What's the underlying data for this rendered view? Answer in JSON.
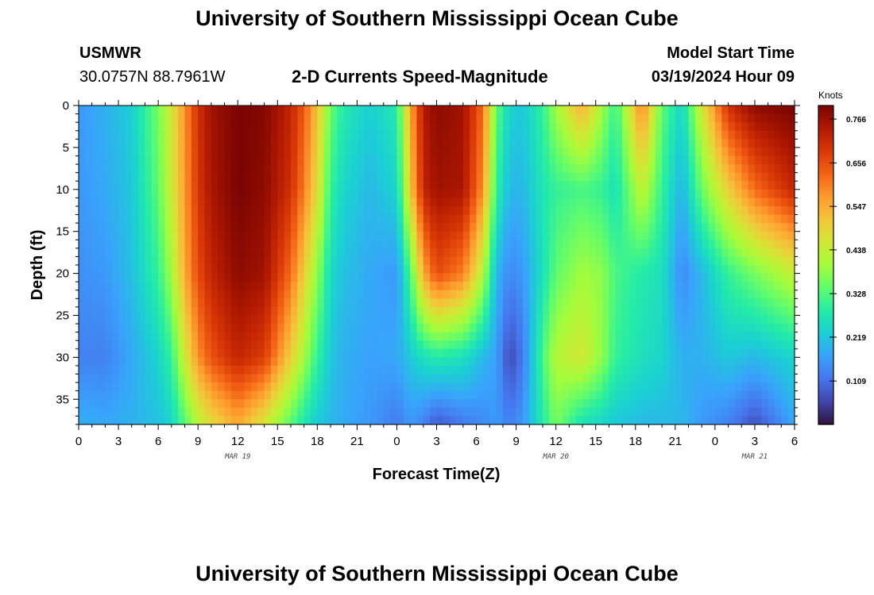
{
  "page": {
    "title": "University of Southern Mississippi Ocean Cube",
    "station": "USMWR",
    "coords": "30.0757N  88.7961W",
    "subtitle": "2-D Currents Speed-Magnitude",
    "model_label": "Model Start Time",
    "model_time": "03/19/2024 Hour 09",
    "bottom_title": "University of Southern Mississippi Ocean Cube"
  },
  "colors": {
    "scale": [
      "#30123b",
      "#4145ab",
      "#4675ed",
      "#39a2fc",
      "#1bcfd4",
      "#24eca6",
      "#61fc6c",
      "#a4fc3b",
      "#d1e834",
      "#f3c63a",
      "#fe9b2d",
      "#f36315",
      "#d93806",
      "#b11901",
      "#7a0402"
    ]
  },
  "chart_data": {
    "type": "heatmap",
    "title": "2-D Currents Speed-Magnitude",
    "xlabel": "Forecast Time(Z)",
    "ylabel": "Depth (ft)",
    "x_ticks": [
      "0",
      "3",
      "6",
      "9",
      "12",
      "15",
      "18",
      "21",
      "0",
      "3",
      "6",
      "9",
      "12",
      "15",
      "18",
      "21",
      "0",
      "3",
      "6"
    ],
    "x_range_hours": [
      0,
      54
    ],
    "y_ticks": [
      0,
      5,
      10,
      15,
      20,
      25,
      30,
      35
    ],
    "ylim": [
      0,
      38
    ],
    "date_labels": [
      {
        "label": "MAR 19",
        "hour": 12
      },
      {
        "label": "MAR 20",
        "hour": 36
      },
      {
        "label": "MAR 21",
        "hour": 51
      }
    ],
    "colorbar": {
      "unit": "Knots",
      "labels": [
        "0.766",
        "0.656",
        "0.547",
        "0.438",
        "0.328",
        "0.219",
        "0.109"
      ],
      "min": 0.0,
      "max": 0.8
    },
    "profile_depths_ft": [
      0,
      10,
      20,
      30,
      38
    ],
    "profiles": [
      {
        "hour": 0,
        "speeds": [
          0.16,
          0.16,
          0.15,
          0.13,
          0.19
        ]
      },
      {
        "hour": 2,
        "speeds": [
          0.19,
          0.18,
          0.16,
          0.13,
          0.18
        ]
      },
      {
        "hour": 4,
        "speeds": [
          0.23,
          0.22,
          0.21,
          0.18,
          0.19
        ]
      },
      {
        "hour": 6,
        "speeds": [
          0.36,
          0.34,
          0.3,
          0.24,
          0.21
        ]
      },
      {
        "hour": 7,
        "speeds": [
          0.46,
          0.45,
          0.4,
          0.3,
          0.24
        ]
      },
      {
        "hour": 8,
        "speeds": [
          0.58,
          0.57,
          0.55,
          0.45,
          0.33
        ]
      },
      {
        "hour": 9,
        "speeds": [
          0.7,
          0.69,
          0.66,
          0.58,
          0.42
        ]
      },
      {
        "hour": 10,
        "speeds": [
          0.76,
          0.75,
          0.72,
          0.65,
          0.48
        ]
      },
      {
        "hour": 12,
        "speeds": [
          0.8,
          0.8,
          0.78,
          0.72,
          0.55
        ]
      },
      {
        "hour": 14,
        "speeds": [
          0.79,
          0.78,
          0.76,
          0.68,
          0.46
        ]
      },
      {
        "hour": 16,
        "speeds": [
          0.72,
          0.7,
          0.62,
          0.5,
          0.33
        ]
      },
      {
        "hour": 17,
        "speeds": [
          0.64,
          0.6,
          0.5,
          0.4,
          0.27
        ]
      },
      {
        "hour": 18,
        "speeds": [
          0.52,
          0.48,
          0.38,
          0.3,
          0.22
        ]
      },
      {
        "hour": 19,
        "speeds": [
          0.35,
          0.3,
          0.25,
          0.22,
          0.2
        ]
      },
      {
        "hour": 20,
        "speeds": [
          0.28,
          0.24,
          0.21,
          0.19,
          0.18
        ]
      },
      {
        "hour": 22,
        "speeds": [
          0.23,
          0.2,
          0.18,
          0.17,
          0.16
        ]
      },
      {
        "hour": 24,
        "speeds": [
          0.28,
          0.24,
          0.16,
          0.18,
          0.12
        ]
      },
      {
        "hour": 25,
        "speeds": [
          0.55,
          0.5,
          0.32,
          0.22,
          0.16
        ]
      },
      {
        "hour": 26,
        "speeds": [
          0.74,
          0.72,
          0.55,
          0.26,
          0.13
        ]
      },
      {
        "hour": 27,
        "speeds": [
          0.78,
          0.76,
          0.66,
          0.28,
          0.08
        ]
      },
      {
        "hour": 29,
        "speeds": [
          0.76,
          0.75,
          0.6,
          0.26,
          0.12
        ]
      },
      {
        "hour": 30.5,
        "speeds": [
          0.62,
          0.58,
          0.42,
          0.2,
          0.14
        ]
      },
      {
        "hour": 31.5,
        "speeds": [
          0.34,
          0.3,
          0.2,
          0.17,
          0.16
        ]
      },
      {
        "hour": 32.5,
        "speeds": [
          0.24,
          0.2,
          0.14,
          0.06,
          0.13
        ]
      },
      {
        "hour": 33.5,
        "speeds": [
          0.22,
          0.2,
          0.16,
          0.12,
          0.16
        ]
      },
      {
        "hour": 35,
        "speeds": [
          0.3,
          0.27,
          0.26,
          0.32,
          0.28
        ]
      },
      {
        "hour": 36,
        "speeds": [
          0.4,
          0.3,
          0.34,
          0.42,
          0.36
        ]
      },
      {
        "hour": 38,
        "speeds": [
          0.55,
          0.32,
          0.4,
          0.46,
          0.26
        ]
      },
      {
        "hour": 39.5,
        "speeds": [
          0.4,
          0.3,
          0.38,
          0.38,
          0.24
        ]
      },
      {
        "hour": 40.5,
        "speeds": [
          0.3,
          0.26,
          0.32,
          0.3,
          0.22
        ]
      },
      {
        "hour": 42.5,
        "speeds": [
          0.6,
          0.44,
          0.28,
          0.26,
          0.2
        ]
      },
      {
        "hour": 44,
        "speeds": [
          0.34,
          0.3,
          0.26,
          0.24,
          0.2
        ]
      },
      {
        "hour": 45.5,
        "speeds": [
          0.24,
          0.19,
          0.14,
          0.19,
          0.2
        ]
      },
      {
        "hour": 47,
        "speeds": [
          0.46,
          0.35,
          0.2,
          0.19,
          0.16
        ]
      },
      {
        "hour": 49,
        "speeds": [
          0.7,
          0.5,
          0.3,
          0.22,
          0.13
        ]
      },
      {
        "hour": 51,
        "speeds": [
          0.78,
          0.62,
          0.36,
          0.2,
          0.07
        ]
      },
      {
        "hour": 54,
        "speeds": [
          0.8,
          0.72,
          0.44,
          0.24,
          0.18
        ]
      }
    ]
  }
}
